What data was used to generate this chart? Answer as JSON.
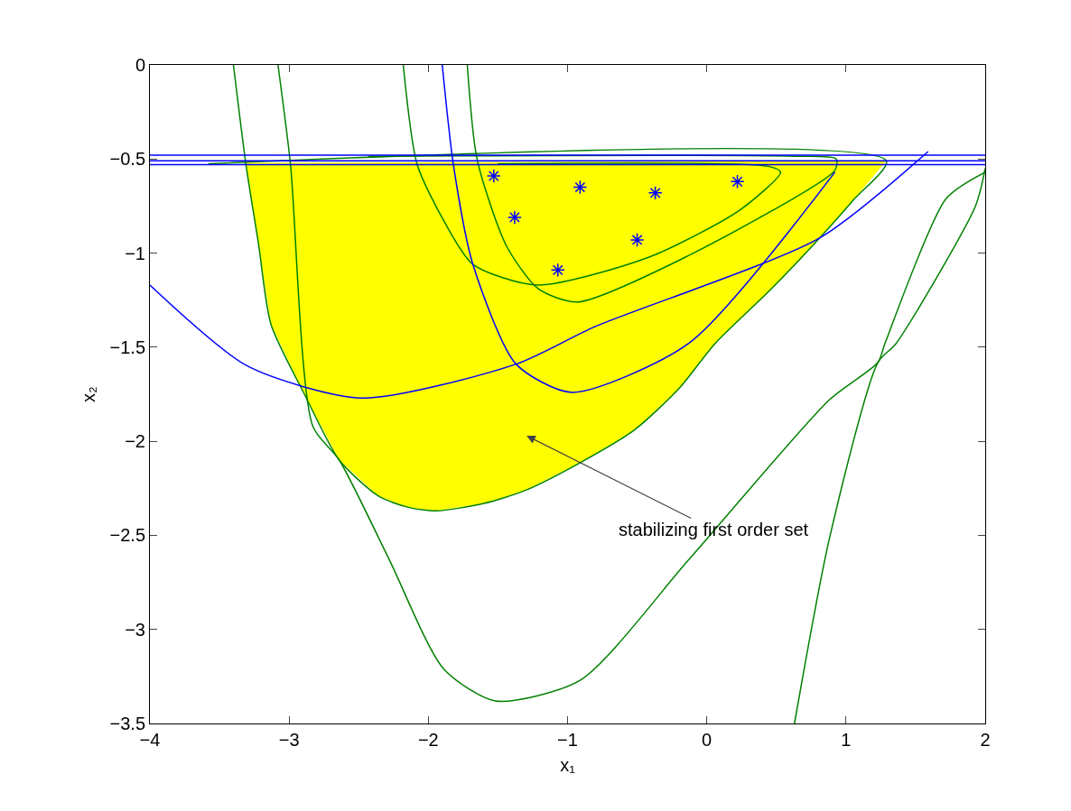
{
  "chart_data": {
    "type": "line",
    "xlabel": "x₁",
    "ylabel": "x₂",
    "xlim": [
      -4,
      2
    ],
    "ylim": [
      -3.5,
      0
    ],
    "xticks": [
      -4,
      -3,
      -2,
      -1,
      0,
      1,
      2
    ],
    "yticks": [
      -3.5,
      -3,
      -2.5,
      -2,
      -1.5,
      -1,
      -0.5,
      0
    ],
    "grid": false,
    "series": [
      {
        "type": "area",
        "color": "#ffff00",
        "x": [
          -3.31,
          -3.22,
          -3.13,
          -2.89,
          -2.64,
          -2.36,
          -2.15,
          -1.94,
          -1.6,
          -1.3,
          -0.9,
          -0.52,
          -0.2,
          0.06,
          0.45,
          0.81,
          1.05,
          1.29,
          -3.31
        ],
        "values": [
          -0.52,
          -0.95,
          -1.38,
          -1.75,
          -2.1,
          -2.29,
          -2.35,
          -2.37,
          -2.33,
          -2.26,
          -2.11,
          -1.94,
          -1.72,
          -1.48,
          -1.2,
          -0.92,
          -0.72,
          -0.51,
          -0.52
        ]
      },
      {
        "color": "#008000",
        "x": [
          -3.4,
          -3.31,
          -3.22,
          -3.13,
          -2.89,
          -2.64,
          -2.36,
          -2.15,
          -1.94,
          -1.6,
          -1.3,
          -0.9,
          -0.52,
          -0.2,
          0.06,
          0.45,
          0.81,
          1.05,
          1.29,
          -3.58
        ],
        "values": [
          0,
          -0.53,
          -0.95,
          -1.38,
          -1.75,
          -2.1,
          -2.29,
          -2.35,
          -2.37,
          -2.33,
          -2.26,
          -2.11,
          -1.94,
          -1.72,
          -1.48,
          -1.2,
          -0.92,
          -0.72,
          -0.51,
          -0.525
        ]
      },
      {
        "color": "#008000",
        "x": [
          -3.08,
          -2.99,
          -2.83,
          -2.64,
          -2.28,
          -1.89,
          -1.52,
          -0.91,
          -0.13,
          0.88,
          1.23,
          1.28,
          1.72,
          2.0
        ],
        "values": [
          0,
          -0.53,
          -1.92,
          -2.1,
          -2.63,
          -3.21,
          -3.38,
          -3.27,
          -2.63,
          -1.78,
          -1.58,
          -1.48,
          -0.71,
          -0.57
        ]
      },
      {
        "color": "#008000",
        "x": [
          -1.72,
          -1.65,
          -1.44,
          -1.21,
          -0.93,
          -0.15,
          0.92,
          0.93,
          0.63,
          -2.43
        ],
        "values": [
          0,
          -0.5,
          -0.96,
          -1.19,
          -1.26,
          -1.02,
          -0.56,
          -0.5,
          -0.485,
          -0.485
        ]
      },
      {
        "color": "#008000",
        "x": [
          -2.18,
          -2.08,
          -1.88,
          -1.68,
          -1.22,
          -0.41,
          0.24,
          0.53,
          0.45,
          -1.5
        ],
        "values": [
          0,
          -0.53,
          -0.84,
          -1.06,
          -1.17,
          -1.02,
          -0.77,
          -0.57,
          -0.54,
          -0.525
        ]
      },
      {
        "color": "#008000",
        "x": [
          0.63,
          0.88,
          1.23,
          1.36,
          1.93,
          2.0
        ],
        "values": [
          -3.5,
          -2.52,
          -1.58,
          -1.48,
          -0.75,
          -0.55
        ]
      },
      {
        "color": "#0000ff",
        "x": [
          -1.9,
          -1.82,
          -1.68,
          -1.37,
          -0.97,
          -0.13,
          0.92
        ],
        "values": [
          0,
          -0.53,
          -1.06,
          -1.59,
          -1.74,
          -1.48,
          -0.57
        ]
      },
      {
        "color": "#0000ff",
        "x": [
          -4,
          -3.3,
          -2.48,
          -1.37,
          -0.8,
          0.81,
          1.59
        ],
        "values": [
          -1.17,
          -1.6,
          -1.77,
          -1.59,
          -1.39,
          -0.92,
          -0.46
        ]
      },
      {
        "color": "#0000ff",
        "x": [
          -4,
          2
        ],
        "values": [
          -0.48,
          -0.48
        ]
      },
      {
        "color": "#0000ff",
        "x": [
          -4,
          2
        ],
        "values": [
          -0.51,
          -0.51
        ]
      },
      {
        "color": "#0000ff",
        "x": [
          -4,
          2
        ],
        "values": [
          -0.53,
          -0.53
        ]
      },
      {
        "type": "scatter",
        "marker": "cross",
        "color": "#0000ff",
        "x": [
          -1.53,
          -1.38,
          -0.91,
          -1.07,
          -0.37,
          -0.5,
          0.22
        ],
        "values": [
          -0.59,
          -0.81,
          -0.65,
          -1.09,
          -0.68,
          -0.93,
          -0.62
        ]
      }
    ],
    "annotations": [
      "stabilizing first order set"
    ]
  }
}
